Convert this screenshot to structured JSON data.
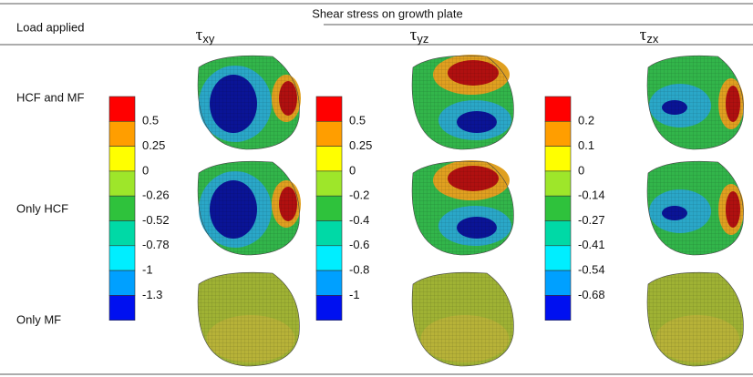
{
  "header": {
    "title": "Shear stress on growth plate",
    "row_heading": "Load applied",
    "columns": [
      {
        "symbol": "τ",
        "subscript": "xy"
      },
      {
        "symbol": "τ",
        "subscript": "yz"
      },
      {
        "symbol": "τ",
        "subscript": "zx"
      }
    ]
  },
  "rows": [
    "HCF and MF",
    "Only HCF",
    "Only MF"
  ],
  "color_scales": [
    {
      "labels": [
        "0.5",
        "0.25",
        "0",
        "-0.26",
        "-0.52",
        "-0.78",
        "-1",
        "-1.3"
      ]
    },
    {
      "labels": [
        "0.5",
        "0.25",
        "0",
        "-0.2",
        "-0.4",
        "-0.6",
        "-0.8",
        "-1"
      ]
    },
    {
      "labels": [
        "0.2",
        "0.1",
        "0",
        "-0.14",
        "-0.27",
        "-0.41",
        "-0.54",
        "-0.68"
      ]
    }
  ]
}
